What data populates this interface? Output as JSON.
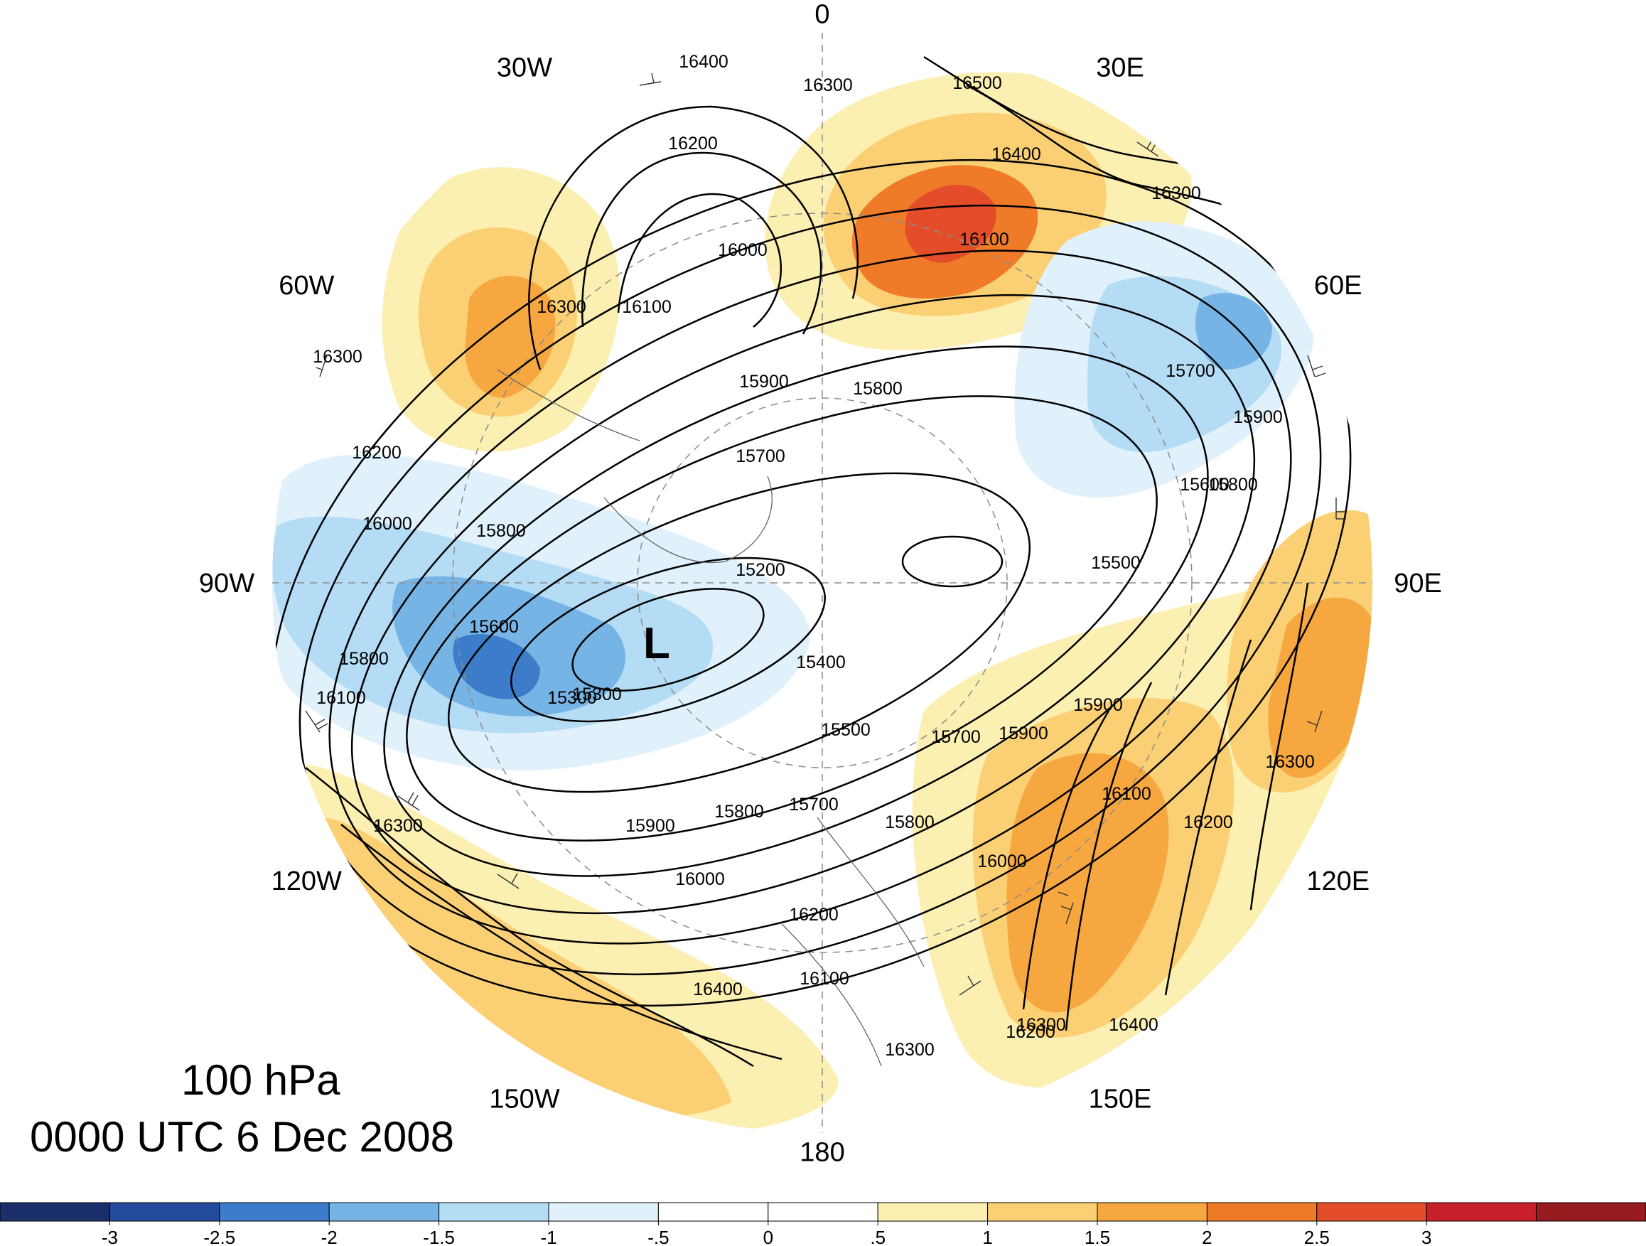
{
  "title": {
    "level": "100 hPa",
    "time": "0000 UTC 6 Dec 2008"
  },
  "longitude_labels": [
    {
      "text": "180",
      "lon": 180
    },
    {
      "text": "150E",
      "lon": 150
    },
    {
      "text": "120E",
      "lon": 120
    },
    {
      "text": "90E",
      "lon": 90
    },
    {
      "text": "60E",
      "lon": 60
    },
    {
      "text": "30E",
      "lon": 30
    },
    {
      "text": "0",
      "lon": 0
    },
    {
      "text": "30W",
      "lon": -30
    },
    {
      "text": "60W",
      "lon": -60
    },
    {
      "text": "90W",
      "lon": -90
    },
    {
      "text": "120W",
      "lon": -120
    },
    {
      "text": "150W",
      "lon": -150
    }
  ],
  "contour_labels": [
    "16400",
    "16300",
    "16500",
    "16200",
    "16400",
    "16300",
    "16100",
    "16000",
    "16300",
    "16100",
    "16300",
    "15900",
    "15800",
    "16200",
    "15700",
    "15700",
    "15900",
    "15600",
    "15800",
    "16000",
    "15800",
    "15200",
    "15500",
    "15600",
    "15800",
    "16100",
    "15300",
    "15400",
    "15300",
    "15500",
    "15700",
    "15900",
    "15700",
    "16100",
    "15800",
    "16300",
    "15900",
    "15800",
    "16200",
    "16000",
    "16300",
    "15900",
    "16000",
    "16200",
    "16100",
    "16400",
    "16300",
    "16200",
    "16300",
    "16400"
  ],
  "low_marker": "L",
  "colorbar": {
    "colors": [
      "#1b2f6b",
      "#234a9c",
      "#3d7cc9",
      "#76b4e6",
      "#b4dcf4",
      "#e1f1fb",
      "#ffffff",
      "#ffffff",
      "#fcefb2",
      "#fbd074",
      "#f7a740",
      "#ef7a28",
      "#e44d2a",
      "#c8202a",
      "#961b1e"
    ],
    "labels": [
      "-3",
      "-2.5",
      "-2",
      "-1.5",
      "-1",
      "-.5",
      "0",
      ".5",
      "1",
      "1.5",
      "2",
      "2.5",
      "3"
    ]
  }
}
